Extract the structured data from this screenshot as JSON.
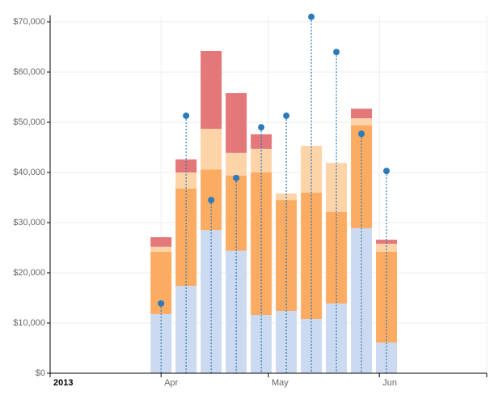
{
  "chart_data": {
    "type": "bar",
    "x": [
      31,
      38,
      45,
      52,
      59,
      66,
      73,
      80,
      87,
      94
    ],
    "xlim": [
      0,
      122
    ],
    "xticks": [
      {
        "value": 0,
        "label": "2013"
      },
      {
        "value": 31,
        "label": "Apr"
      },
      {
        "value": 61,
        "label": "May"
      },
      {
        "value": 92,
        "label": "Jun"
      },
      122
    ],
    "ylim": [
      0,
      70000
    ],
    "yticks": [
      {
        "value": 0,
        "label": "$0"
      },
      {
        "value": 10000,
        "label": "$10,000"
      },
      {
        "value": 20000,
        "label": "$20,000"
      },
      {
        "value": 30000,
        "label": "$30,000"
      },
      {
        "value": 40000,
        "label": "$40,000"
      },
      {
        "value": 50000,
        "label": "$50,000"
      },
      {
        "value": 60000,
        "label": "$60,000"
      },
      {
        "value": 70000,
        "label": "$70,000"
      }
    ],
    "grid": true,
    "stacked": true,
    "series": [
      {
        "color": "#cbdaf0",
        "values": [
          11800,
          17400,
          28500,
          24400,
          11600,
          12400,
          10800,
          13900,
          28900,
          6100
        ]
      },
      {
        "color": "#fbab62",
        "values": [
          12400,
          19400,
          12100,
          15000,
          28400,
          22100,
          25200,
          18200,
          20500,
          18100
        ]
      },
      {
        "color": "#fdd3a8",
        "values": [
          1000,
          3200,
          8100,
          4500,
          4700,
          1300,
          9300,
          9800,
          1400,
          1600
        ]
      },
      {
        "color": "#e3777a",
        "values": [
          1900,
          2600,
          15500,
          11900,
          2900,
          0,
          0,
          0,
          1900,
          800
        ]
      }
    ],
    "points": {
      "color": "#2b7bba",
      "values": [
        13900,
        51300,
        34500,
        38900,
        49000,
        51300,
        71000,
        64000,
        47700,
        40300
      ]
    }
  }
}
